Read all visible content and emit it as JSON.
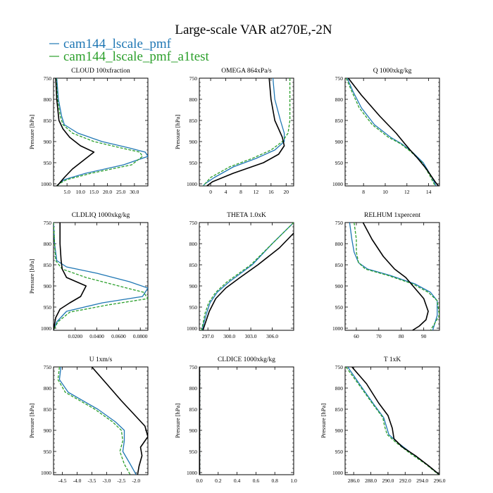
{
  "title": "Large-scale VAR at270E,-2N",
  "legend": [
    {
      "name": "cam144_lscale_pmf",
      "color": "#1f77b4"
    },
    {
      "name": "cam144_lscale_pmf_a1test",
      "color": "#2ca02c"
    }
  ],
  "chart_data": [
    {
      "type": "line",
      "title": "CLOUD  100xfraction",
      "ylabel": "Pressure [hPa]",
      "xlim": [
        0,
        35
      ],
      "ylim": [
        1005,
        750
      ],
      "xticks": [
        5,
        10,
        15,
        20,
        25,
        30
      ],
      "xtick_labels": [
        "5.0",
        "10.0",
        "15.0",
        "20.0",
        "25.0",
        "30.0"
      ],
      "yticks": [
        750,
        800,
        850,
        900,
        950,
        1000
      ],
      "series": [
        {
          "name": "cam144_lscale_pmf",
          "color": "#1f77b4",
          "x": [
            1.2,
            1.8,
            3,
            4,
            9,
            18,
            28,
            34,
            35,
            26,
            12,
            4,
            2,
            1.5
          ],
          "y": [
            750,
            800,
            840,
            860,
            880,
            900,
            915,
            925,
            935,
            955,
            975,
            990,
            1000,
            1005
          ]
        },
        {
          "name": "cam144_lscale_pmf_a1test",
          "color": "#2ca02c",
          "dash": "4,2",
          "x": [
            1,
            1.5,
            2.5,
            3.5,
            7,
            15,
            25,
            32,
            33,
            29,
            14,
            5,
            2,
            1.5
          ],
          "y": [
            750,
            800,
            840,
            860,
            880,
            900,
            915,
            925,
            935,
            955,
            975,
            990,
            1000,
            1005
          ]
        },
        {
          "name": "",
          "color": "#000000",
          "x": [
            0.8,
            1.2,
            2,
            3.5,
            6,
            10,
            15,
            11,
            7,
            4,
            2,
            1.2
          ],
          "y": [
            750,
            800,
            850,
            870,
            890,
            910,
            925,
            945,
            965,
            985,
            1000,
            1005
          ]
        }
      ]
    },
    {
      "type": "line",
      "title": "OMEGA  864xPa/s",
      "ylabel": "Pressure [hPa]",
      "xlim": [
        -3,
        22
      ],
      "ylim": [
        1005,
        750
      ],
      "xticks": [
        0,
        4,
        8,
        12,
        16,
        20
      ],
      "xtick_labels": [
        "0",
        "4",
        "8",
        "12",
        "16",
        "20"
      ],
      "yticks": [
        750,
        800,
        850,
        900,
        950,
        1000
      ],
      "series": [
        {
          "name": "cam144_lscale_pmf",
          "color": "#1f77b4",
          "x": [
            16.5,
            17,
            18.5,
            19.5,
            19.5,
            17,
            12,
            6,
            1,
            -1.5,
            -2
          ],
          "y": [
            750,
            800,
            850,
            880,
            900,
            920,
            940,
            960,
            985,
            1000,
            1005
          ]
        },
        {
          "name": "cam144_lscale_pmf_a1test",
          "color": "#2ca02c",
          "dash": "4,2",
          "x": [
            21,
            21,
            21,
            20.5,
            19,
            16,
            11,
            5,
            0,
            -1.5,
            -2
          ],
          "y": [
            750,
            800,
            850,
            880,
            900,
            920,
            940,
            960,
            985,
            1000,
            1005
          ]
        },
        {
          "name": "",
          "color": "#000000",
          "x": [
            15.5,
            16,
            17,
            18,
            19,
            19.5,
            18,
            14,
            6,
            0.5,
            -1
          ],
          "y": [
            750,
            800,
            850,
            870,
            890,
            910,
            930,
            950,
            975,
            995,
            1005
          ]
        }
      ]
    },
    {
      "type": "line",
      "title": "Q  1000xkg/kg",
      "ylabel": "",
      "xlim": [
        6.3,
        15
      ],
      "ylim": [
        1005,
        750
      ],
      "xticks": [
        8,
        10,
        12,
        14
      ],
      "xtick_labels": [
        "8",
        "10",
        "12",
        "14"
      ],
      "yticks": [
        750,
        800,
        850,
        900,
        950,
        1000
      ],
      "series": [
        {
          "name": "cam144_lscale_pmf",
          "color": "#1f77b4",
          "x": [
            6.5,
            7,
            7.8,
            9,
            10.5,
            11.5,
            12.5,
            13.5,
            14.2,
            14.7
          ],
          "y": [
            750,
            780,
            820,
            860,
            890,
            905,
            925,
            950,
            980,
            1005
          ]
        },
        {
          "name": "cam144_lscale_pmf_a1test",
          "color": "#2ca02c",
          "dash": "4,2",
          "x": [
            6.4,
            6.9,
            7.6,
            8.8,
            10.3,
            11.4,
            12.4,
            13.4,
            14.1,
            14.6
          ],
          "y": [
            750,
            780,
            820,
            860,
            890,
            905,
            925,
            950,
            980,
            1005
          ]
        },
        {
          "name": "",
          "color": "#000000",
          "x": [
            6.6,
            7.8,
            9.5,
            11,
            11.8,
            12.3,
            13,
            13.8,
            14.6,
            14.9
          ],
          "y": [
            750,
            790,
            840,
            880,
            905,
            920,
            940,
            965,
            995,
            1005
          ]
        }
      ]
    },
    {
      "type": "line",
      "title": "CLDLIQ  1000xkg/kg",
      "ylabel": "Pressure [hPa]",
      "xlim": [
        0,
        0.087
      ],
      "ylim": [
        1005,
        750
      ],
      "xticks": [
        0.02,
        0.04,
        0.06,
        0.08
      ],
      "xtick_labels": [
        "0.0200",
        "0.0400",
        "0.0600",
        "0.0800"
      ],
      "yticks": [
        750,
        800,
        850,
        900,
        950,
        1000
      ],
      "series": [
        {
          "name": "cam144_lscale_pmf",
          "color": "#1f77b4",
          "x": [
            0,
            0.001,
            0.003,
            0.012,
            0.04,
            0.07,
            0.087,
            0.082,
            0.045,
            0.012,
            0.003,
            0
          ],
          "y": [
            750,
            800,
            840,
            855,
            870,
            890,
            905,
            925,
            940,
            960,
            985,
            1005
          ]
        },
        {
          "name": "cam144_lscale_pmf_a1test",
          "color": "#2ca02c",
          "dash": "4,2",
          "x": [
            0,
            0.001,
            0.002,
            0.008,
            0.03,
            0.06,
            0.083,
            0.087,
            0.05,
            0.015,
            0.004,
            0
          ],
          "y": [
            750,
            800,
            840,
            860,
            880,
            900,
            915,
            930,
            945,
            962,
            985,
            1005
          ]
        },
        {
          "name": "",
          "color": "#000000",
          "x": [
            0.006,
            0.006,
            0.007,
            0.008,
            0.012,
            0.03,
            0.025,
            0.015,
            0.006,
            0.002,
            0.001,
            0
          ],
          "y": [
            750,
            800,
            840,
            860,
            880,
            900,
            925,
            940,
            955,
            975,
            990,
            1005
          ]
        }
      ]
    },
    {
      "type": "line",
      "title": "THETA  1.0xK",
      "ylabel": "",
      "xlim": [
        295.8,
        309
      ],
      "ylim": [
        1005,
        750
      ],
      "xticks": [
        297,
        300,
        303,
        306
      ],
      "xtick_labels": [
        "297.0",
        "300.0",
        "303.0",
        "306.0"
      ],
      "yticks": [
        750,
        800,
        850,
        900,
        950,
        1000
      ],
      "series": [
        {
          "name": "cam144_lscale_pmf",
          "color": "#1f77b4",
          "x": [
            309,
            306,
            303.2,
            300,
            298.3,
            297.3,
            296.8,
            296.4,
            296.2
          ],
          "y": [
            750,
            800,
            850,
            890,
            915,
            940,
            965,
            990,
            1005
          ]
        },
        {
          "name": "cam144_lscale_pmf_a1test",
          "color": "#2ca02c",
          "dash": "4,2",
          "x": [
            309,
            306,
            303,
            299.7,
            298.1,
            297.1,
            296.6,
            296.3,
            296.1
          ],
          "y": [
            750,
            800,
            850,
            890,
            915,
            940,
            965,
            990,
            1005
          ]
        },
        {
          "name": "",
          "color": "#000000",
          "x": [
            309,
            307,
            304,
            301.5,
            299.5,
            298.1,
            297.2,
            296.6,
            296.3
          ],
          "y": [
            775,
            810,
            850,
            880,
            905,
            930,
            960,
            990,
            1005
          ]
        }
      ]
    },
    {
      "type": "line",
      "title": "RELHUM  1xpercent",
      "ylabel": "",
      "xlim": [
        55,
        97
      ],
      "ylim": [
        1005,
        750
      ],
      "xticks": [
        60,
        70,
        80,
        90
      ],
      "xtick_labels": [
        "60",
        "70",
        "80",
        "90"
      ],
      "yticks": [
        750,
        800,
        850,
        900,
        950,
        1000
      ],
      "series": [
        {
          "name": "cam144_lscale_pmf",
          "color": "#1f77b4",
          "x": [
            57,
            58,
            59,
            61,
            65,
            75,
            86,
            93,
            96,
            96,
            94
          ],
          "y": [
            750,
            790,
            820,
            845,
            860,
            875,
            895,
            915,
            935,
            970,
            1005
          ]
        },
        {
          "name": "cam144_lscale_pmf_a1test",
          "color": "#2ca02c",
          "dash": "4,2",
          "x": [
            59,
            60,
            60,
            61,
            64,
            74,
            85,
            92,
            96,
            97,
            93
          ],
          "y": [
            750,
            790,
            820,
            845,
            860,
            875,
            895,
            915,
            935,
            970,
            1005
          ]
        },
        {
          "name": "",
          "color": "#000000",
          "x": [
            63,
            67,
            72,
            77,
            82,
            86,
            90,
            92,
            91,
            88,
            85
          ],
          "y": [
            750,
            790,
            830,
            860,
            880,
            905,
            930,
            960,
            980,
            995,
            1005
          ]
        }
      ]
    },
    {
      "type": "line",
      "title": "U  1xm/s",
      "ylabel": "Pressure [hPa]",
      "xlim": [
        -4.8,
        -1.6
      ],
      "ylim": [
        1005,
        750
      ],
      "xticks": [
        -4.5,
        -4,
        -3.5,
        -3,
        -2.5,
        -2
      ],
      "xtick_labels": [
        "-4.5",
        "-4.0",
        "-3.5",
        "-3.0",
        "-2.5",
        "-2.0"
      ],
      "yticks": [
        750,
        800,
        850,
        900,
        950,
        1000
      ],
      "series": [
        {
          "name": "cam144_lscale_pmf",
          "color": "#1f77b4",
          "x": [
            -4.55,
            -4.6,
            -4.3,
            -3.3,
            -2.7,
            -2.4,
            -2.4,
            -2.45,
            -2.2,
            -2.0
          ],
          "y": [
            750,
            780,
            810,
            850,
            880,
            900,
            925,
            950,
            980,
            1005
          ]
        },
        {
          "name": "cam144_lscale_pmf_a1test",
          "color": "#2ca02c",
          "dash": "4,2",
          "x": [
            -4.6,
            -4.65,
            -4.4,
            -3.4,
            -2.8,
            -2.5,
            -2.45,
            -2.55,
            -2.4,
            -2.2
          ],
          "y": [
            750,
            780,
            810,
            850,
            880,
            900,
            925,
            950,
            980,
            1005
          ]
        },
        {
          "name": "",
          "color": "#000000",
          "x": [
            -3.5,
            -3.0,
            -2.5,
            -2.1,
            -1.7,
            -1.6,
            -1.85,
            -1.8,
            -1.9,
            -1.95
          ],
          "y": [
            750,
            790,
            830,
            860,
            890,
            915,
            940,
            960,
            985,
            1005
          ]
        }
      ]
    },
    {
      "type": "line",
      "title": "CLDICE  1000xkg/kg",
      "ylabel": "Pressure [hPa]",
      "xlim": [
        0,
        1
      ],
      "ylim": [
        1005,
        750
      ],
      "xticks": [
        0,
        0.2,
        0.4,
        0.6,
        0.8,
        1.0
      ],
      "xtick_labels": [
        "0.0",
        "0.2",
        "0.4",
        "0.6",
        "0.8",
        "1.0"
      ],
      "yticks": [
        750,
        800,
        850,
        900,
        950,
        1000
      ],
      "series": [
        {
          "name": "cam144_lscale_pmf",
          "color": "#1f77b4",
          "x": [
            0.003,
            0.003
          ],
          "y": [
            750,
            1005
          ]
        },
        {
          "name": "cam144_lscale_pmf_a1test",
          "color": "#2ca02c",
          "dash": "4,2",
          "x": [
            0.003,
            0.003
          ],
          "y": [
            750,
            1005
          ]
        },
        {
          "name": "",
          "color": "#000000",
          "x": [
            0.003,
            0.003
          ],
          "y": [
            750,
            1005
          ]
        }
      ]
    },
    {
      "type": "line",
      "title": "T  1xK",
      "ylabel": "Pressure [hPa]",
      "xlim": [
        285,
        296
      ],
      "ylim": [
        1005,
        750
      ],
      "xticks": [
        286,
        288,
        290,
        292,
        294,
        296
      ],
      "xtick_labels": [
        "286.0",
        "288.0",
        "290.0",
        "292.0",
        "294.0",
        "296.0"
      ],
      "yticks": [
        750,
        800,
        850,
        900,
        950,
        1000
      ],
      "series": [
        {
          "name": "cam144_lscale_pmf",
          "color": "#1f77b4",
          "x": [
            285.3,
            287,
            288.4,
            289.5,
            289.8,
            290.1,
            291.2,
            292.8,
            294.5,
            296
          ],
          "y": [
            750,
            800,
            840,
            870,
            890,
            910,
            930,
            955,
            980,
            1005
          ]
        },
        {
          "name": "cam144_lscale_pmf_a1test",
          "color": "#2ca02c",
          "dash": "4,2",
          "x": [
            285.1,
            286.9,
            288.3,
            289.4,
            289.6,
            289.9,
            291,
            292.6,
            294.4,
            295.9
          ],
          "y": [
            750,
            800,
            840,
            870,
            890,
            910,
            930,
            955,
            980,
            1005
          ]
        },
        {
          "name": "",
          "color": "#000000",
          "x": [
            285.8,
            287.5,
            288.9,
            290.0,
            290.5,
            290.7,
            291.7,
            293.2,
            294.8,
            296
          ],
          "y": [
            750,
            790,
            835,
            865,
            895,
            920,
            940,
            960,
            985,
            1005
          ]
        }
      ]
    }
  ]
}
